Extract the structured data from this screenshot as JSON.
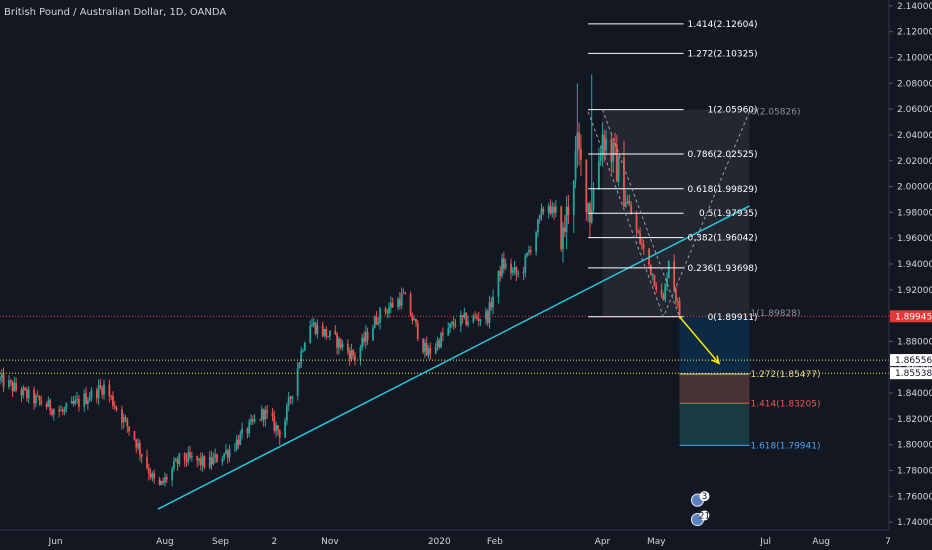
{
  "chart_data": {
    "type": "candlestick",
    "title": "British Pound / Australian Dollar, 1D, OANDA",
    "colors": {
      "background": "#131722",
      "up": "#26a69a",
      "down": "#ef5350",
      "trendline": "#26c6da",
      "arrow": "#ffe500",
      "price_line": "#e53935",
      "dotted_line": "#f5e663"
    },
    "x_dates": {
      "start": "2019-05-01",
      "end": "2020-08-31"
    },
    "ylim": [
      1.73,
      2.15
    ],
    "x_ticks": [
      {
        "date": "2019-06-01",
        "label": "Jun"
      },
      {
        "date": "2019-08-01",
        "label": "Aug"
      },
      {
        "date": "2019-09-01",
        "label": "Sep"
      },
      {
        "date": "2019-10-01",
        "label": "2"
      },
      {
        "date": "2019-11-01",
        "label": "Nov"
      },
      {
        "date": "2020-01-01",
        "label": "2020"
      },
      {
        "date": "2020-02-01",
        "label": "Feb"
      },
      {
        "date": "2020-04-01",
        "label": "Apr"
      },
      {
        "date": "2020-05-01",
        "label": "May"
      },
      {
        "date": "2020-07-01",
        "label": "Jul"
      },
      {
        "date": "2020-08-01",
        "label": "Aug"
      }
    ],
    "x_tick_edge_label": "7",
    "y_ticks": [
      "1.74000",
      "1.76000",
      "1.78000",
      "1.80000",
      "1.82000",
      "1.84000",
      "1.86000",
      "1.88000",
      "1.90000",
      "1.92000",
      "1.94000",
      "1.96000",
      "1.98000",
      "2.00000",
      "2.02000",
      "2.04000",
      "2.06000",
      "2.08000",
      "2.10000",
      "2.12000",
      "2.14000"
    ],
    "price_tags": [
      {
        "value": 1.89945,
        "label": "1.89945",
        "color": "#e53935"
      },
      {
        "value": 1.86556,
        "label": "1.86556",
        "color": "#ffffff"
      },
      {
        "value": 1.85538,
        "label": "1.85538",
        "color": "#ffffff"
      }
    ],
    "anchors": [
      {
        "date": "2019-05-01",
        "close": 1.85
      },
      {
        "date": "2019-05-20",
        "close": 1.835
      },
      {
        "date": "2019-06-05",
        "close": 1.825
      },
      {
        "date": "2019-06-28",
        "close": 1.845
      },
      {
        "date": "2019-07-15",
        "close": 1.805
      },
      {
        "date": "2019-07-28",
        "close": 1.765
      },
      {
        "date": "2019-08-10",
        "close": 1.79
      },
      {
        "date": "2019-08-25",
        "close": 1.785
      },
      {
        "date": "2019-09-05",
        "close": 1.795
      },
      {
        "date": "2019-09-25",
        "close": 1.825
      },
      {
        "date": "2019-10-05",
        "close": 1.808
      },
      {
        "date": "2019-10-20",
        "close": 1.895
      },
      {
        "date": "2019-11-05",
        "close": 1.88
      },
      {
        "date": "2019-11-15",
        "close": 1.868
      },
      {
        "date": "2019-11-28",
        "close": 1.9
      },
      {
        "date": "2019-12-12",
        "close": 1.915
      },
      {
        "date": "2019-12-25",
        "close": 1.87
      },
      {
        "date": "2020-01-10",
        "close": 1.895
      },
      {
        "date": "2020-01-28",
        "close": 1.9
      },
      {
        "date": "2020-02-05",
        "close": 1.94
      },
      {
        "date": "2020-02-15",
        "close": 1.93
      },
      {
        "date": "2020-03-01",
        "close": 1.99
      },
      {
        "date": "2020-03-10",
        "close": 1.96
      },
      {
        "date": "2020-03-18",
        "close": 2.03
      },
      {
        "date": "2020-03-25",
        "close": 1.98
      },
      {
        "date": "2020-04-01",
        "close": 2.04
      },
      {
        "date": "2020-04-08",
        "close": 2.02
      },
      {
        "date": "2020-04-20",
        "close": 1.965
      },
      {
        "date": "2020-05-05",
        "close": 1.91
      },
      {
        "date": "2020-05-08",
        "close": 1.945
      },
      {
        "date": "2020-05-14",
        "close": 1.9
      }
    ],
    "spikes": [
      {
        "date": "2020-03-18",
        "high": 2.08
      },
      {
        "date": "2020-03-26",
        "high": 2.087
      }
    ],
    "trendline": {
      "from": {
        "date": "2019-07-28",
        "value": 1.75
      },
      "to": {
        "date": "2020-06-22",
        "value": 1.985
      }
    },
    "retracement": {
      "from_date": "2020-04-01",
      "to_date": "2020-05-14",
      "label_date": "2020-06-22",
      "box_top": 2.0596,
      "box_bottom": 1.8991,
      "levels": [
        {
          "value": 2.12604,
          "label": "1.414(2.12604)"
        },
        {
          "value": 2.10325,
          "label": "1.272(2.10325)"
        },
        {
          "value": 2.0596,
          "label": "1(2.05960)"
        },
        {
          "value": 2.02525,
          "label": "0.786(2.02525)"
        },
        {
          "value": 1.99829,
          "label": "0.618(1.99829)"
        },
        {
          "value": 1.97935,
          "label": "0.5(1.97935)"
        },
        {
          "value": 1.96042,
          "label": "0.382(1.96042)"
        },
        {
          "value": 1.93698,
          "label": "0.236(1.93698)"
        },
        {
          "value": 1.89911,
          "label": "0(1.89911)"
        }
      ]
    },
    "extension": {
      "from_date": "2020-05-14",
      "to_date": "2020-06-22",
      "label_top": "0(2.05826)",
      "label_top_value": 2.05826,
      "label_base": "1(1.89828)",
      "label_base_value": 1.89828,
      "zones": [
        {
          "top": 1.8991,
          "bottom": 1.85477,
          "color": "#0d2a45"
        },
        {
          "top": 1.85477,
          "bottom": 1.83205,
          "color": "#4a3337"
        },
        {
          "top": 1.83205,
          "bottom": 1.79941,
          "color": "#173b40"
        }
      ],
      "levels": [
        {
          "value": 1.85477,
          "label": "1.272(1.85477)",
          "color": "#e6d98a"
        },
        {
          "value": 1.83205,
          "label": "1.414(1.83205)",
          "color": "#ef5350"
        },
        {
          "value": 1.79941,
          "label": "1.618(1.79941)",
          "color": "#42a5f5"
        }
      ]
    },
    "arrow": {
      "from": {
        "date": "2020-05-14",
        "value": 1.8991
      },
      "to": {
        "date": "2020-06-05",
        "value": 1.863
      }
    },
    "event_badges": [
      {
        "date": "2020-05-24",
        "value": 1.757,
        "count": "3"
      },
      {
        "date": "2020-05-24",
        "value": 1.742,
        "count": "21"
      }
    ]
  }
}
